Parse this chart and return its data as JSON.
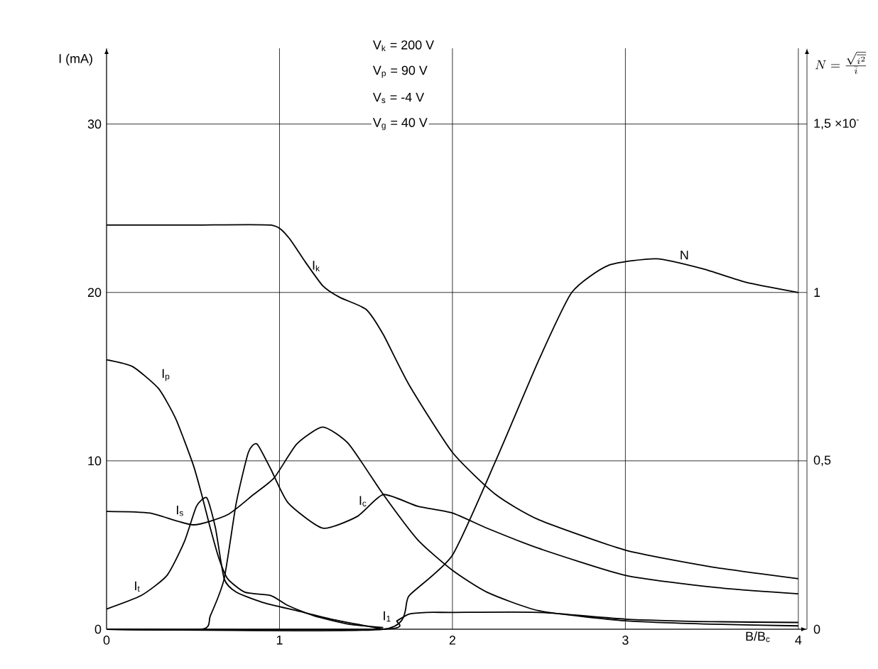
{
  "chart_data": {
    "type": "line",
    "xlabel": "B/B$_{c}$",
    "ylabel": "I (mA)",
    "y2label": "N=\\frac{\\sqrt{\\overline{i^{2}}}}{\\bar{i}}",
    "annotations": [
      "V$_{k}$ = 200 V",
      "V$_{p}$ = 90 V",
      "V$_{s}$ = -4 V",
      "V$_{g}$ = 40 V"
    ],
    "xlim": [
      0,
      4.05
    ],
    "ylim": [
      0,
      34.5
    ],
    "y2lim": [
      0,
      1.725
    ],
    "xticks": [
      0,
      1,
      2,
      3,
      4
    ],
    "yticks": [
      0,
      10,
      20,
      30
    ],
    "y2ticks": [
      0,
      {
        "value": 0.5,
        "label": "0,5"
      },
      1,
      {
        "value": 1.5,
        "label": "1,5 ×10$^{-}$"
      }
    ],
    "grid": true,
    "marker": "none",
    "line_style": "solid",
    "series": [
      {
        "name": "I$_{k}$",
        "color": "#000000",
        "x": [
          0,
          0.5,
          0.95,
          1.05,
          1.15,
          1.25,
          1.35,
          1.5,
          1.6,
          1.75,
          2.0,
          2.25,
          2.5,
          3.0,
          3.5,
          4.0
        ],
        "values": [
          24,
          24,
          24,
          23.3,
          21.8,
          20.4,
          19.7,
          19.0,
          17.5,
          14.5,
          10.5,
          8.0,
          6.5,
          4.7,
          3.7,
          3.0
        ]
      },
      {
        "name": "I$_{p}$",
        "color": "#000000",
        "x": [
          0,
          0.15,
          0.3,
          0.4,
          0.5,
          0.55,
          0.6,
          0.65,
          0.7,
          0.8,
          0.95,
          1.05,
          1.2,
          1.4,
          1.6
        ],
        "values": [
          16,
          15.6,
          14.3,
          12.5,
          9.8,
          8,
          6,
          4.2,
          3.0,
          2.2,
          2.0,
          1.4,
          0.8,
          0.3,
          0.1
        ]
      },
      {
        "name": "I$_{s}$",
        "color": "#000000",
        "x": [
          0,
          0.25,
          0.5,
          0.7,
          0.85,
          0.97,
          1.1,
          1.25,
          1.4,
          1.6,
          1.8,
          2.0,
          2.2,
          2.5,
          3.0,
          3.5,
          4.0
        ],
        "values": [
          7,
          6.9,
          6.2,
          6.8,
          8.0,
          9.0,
          11.0,
          12.0,
          11.0,
          8.0,
          5.3,
          3.5,
          2.2,
          1.1,
          0.5,
          0.3,
          0.2
        ]
      },
      {
        "name": "I$_{t}$",
        "color": "#000000",
        "x": [
          0,
          0.2,
          0.35,
          0.45,
          0.52,
          0.58,
          0.63,
          0.68,
          0.75,
          0.9,
          1.1,
          1.3,
          1.5,
          1.6
        ],
        "values": [
          1.2,
          2.0,
          3.2,
          5.2,
          7.3,
          7.8,
          6.0,
          3.0,
          2.2,
          1.6,
          1.1,
          0.6,
          0.2,
          0
        ]
      },
      {
        "name": "I$_{c}$",
        "color": "#000000",
        "x": [
          0,
          0.55,
          0.6,
          0.68,
          0.75,
          0.82,
          0.87,
          0.95,
          1.05,
          1.25,
          1.45,
          1.6,
          1.8,
          2.0,
          2.2,
          2.5,
          3.0,
          3.5,
          4.0
        ],
        "values": [
          0,
          0,
          0.8,
          3.0,
          7.5,
          10.5,
          11.0,
          9.5,
          7.5,
          6.0,
          6.7,
          8.0,
          7.3,
          6.9,
          6.0,
          4.8,
          3.2,
          2.5,
          2.1
        ]
      },
      {
        "name": "I$_{1}$",
        "color": "#000000",
        "x": [
          0,
          1.6,
          1.68,
          1.75,
          1.85,
          2.0,
          2.5,
          3.0,
          3.5,
          4.0
        ],
        "values": [
          0,
          0,
          0.5,
          0.9,
          1.0,
          1.0,
          1.0,
          0.6,
          0.45,
          0.4
        ]
      },
      {
        "name": "N",
        "color": "#000000",
        "axis": "y2",
        "x": [
          0,
          1.6,
          1.75,
          2.0,
          2.25,
          2.5,
          2.69,
          2.9,
          3.18,
          3.45,
          3.7,
          4.0
        ],
        "values": [
          0,
          0,
          0.1,
          0.22,
          0.5,
          0.8,
          1.0,
          1.08,
          1.1,
          1.07,
          1.03,
          1.0
        ]
      }
    ]
  }
}
